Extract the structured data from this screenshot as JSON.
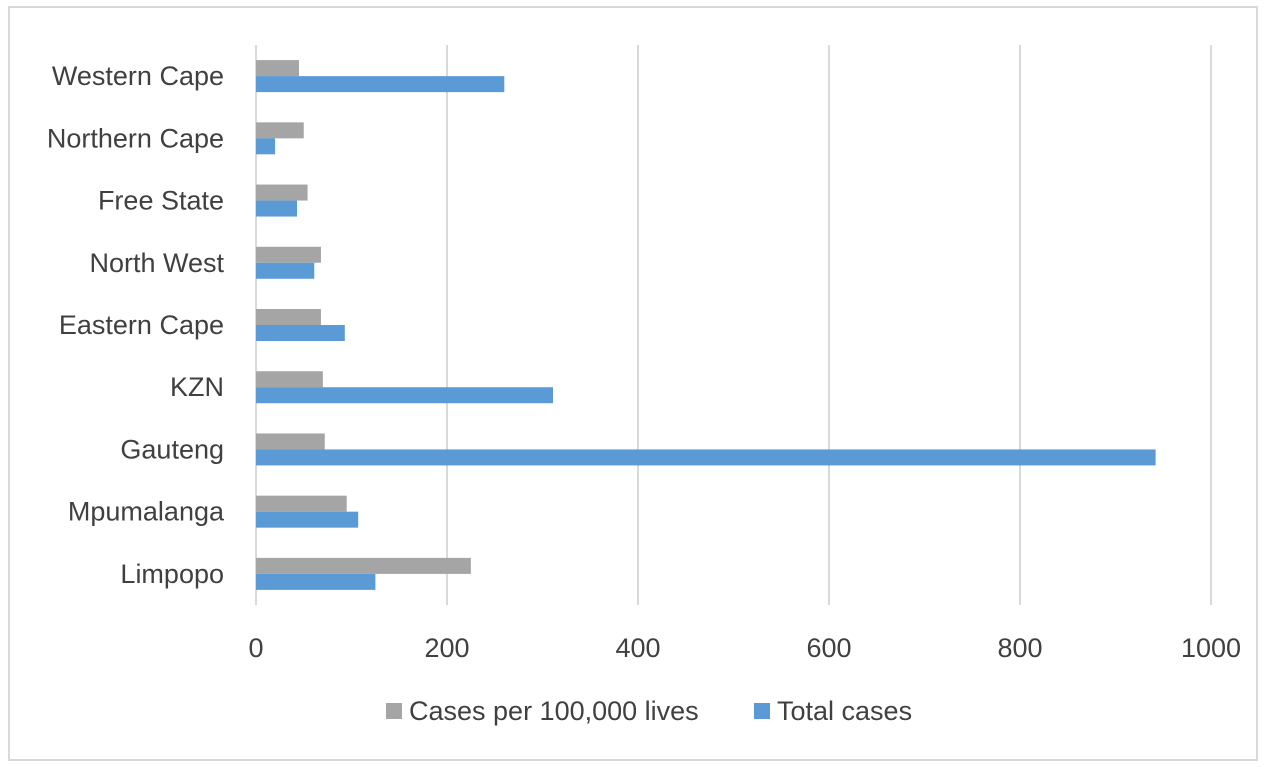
{
  "chart_data": {
    "type": "bar",
    "orientation": "horizontal",
    "categories": [
      "Limpopo",
      "Mpumalanga",
      "Gauteng",
      "KZN",
      "Eastern Cape",
      "North West",
      "Free State",
      "Northern Cape",
      "Western Cape"
    ],
    "series": [
      {
        "name": "Cases per 100,000 lives",
        "color": "#a5a5a5",
        "values": [
          225,
          95,
          72,
          70,
          68,
          68,
          54,
          50,
          45
        ]
      },
      {
        "name": "Total cases",
        "color": "#5b9bd5",
        "values": [
          125,
          107,
          942,
          311,
          93,
          61,
          43,
          20,
          260
        ]
      }
    ],
    "xlim": [
      0,
      1000
    ],
    "xticks": [
      0,
      200,
      400,
      600,
      800,
      1000
    ],
    "grid": true,
    "legend_position": "bottom"
  }
}
